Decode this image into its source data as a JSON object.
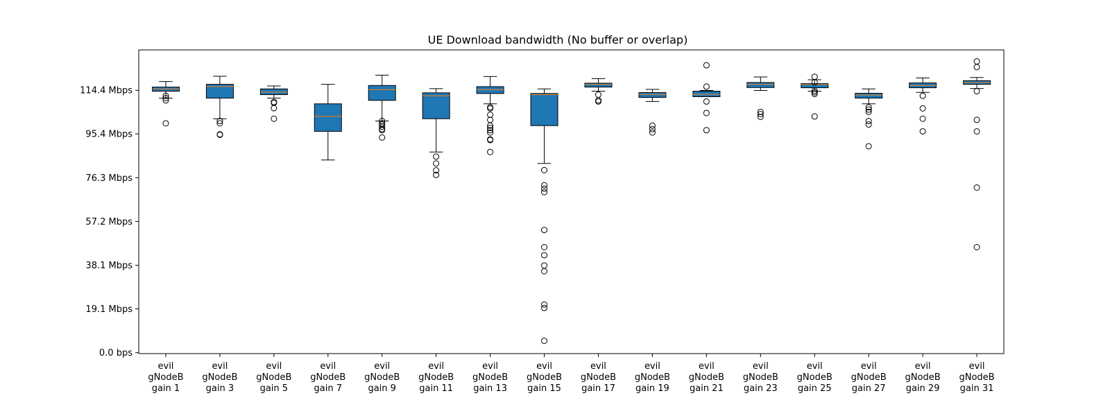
{
  "chart_data": {
    "type": "box",
    "title": "UE Download bandwidth (No buffer or overlap)",
    "xlabel": "",
    "ylabel": "",
    "ylim": [
      -0.4,
      132
    ],
    "yticks": [
      {
        "value": 0.0,
        "label": "0.0 bps"
      },
      {
        "value": 19.1,
        "label": "19.1 Mbps"
      },
      {
        "value": 38.1,
        "label": "38.1 Mbps"
      },
      {
        "value": 57.2,
        "label": "57.2 Mbps"
      },
      {
        "value": 76.3,
        "label": "76.3 Mbps"
      },
      {
        "value": 95.4,
        "label": "95.4 Mbps"
      },
      {
        "value": 114.4,
        "label": "114.4 Mbps"
      }
    ],
    "unit": "Mbps",
    "grid": false,
    "colors": {
      "box_fill": "#1f77b4",
      "median": "#ff7f0e",
      "line": "#000000",
      "flier": "#000000"
    },
    "boxes": [
      {
        "label": [
          "evil",
          "gNodeB",
          "gain 1"
        ],
        "whislo": 111.0,
        "q1": 114.0,
        "med": 115.0,
        "q3": 115.8,
        "whishi": 118.2,
        "fliers": [
          110.0,
          111.0,
          112.0,
          100.0
        ]
      },
      {
        "label": [
          "evil",
          "gNodeB",
          "gain 3"
        ],
        "whislo": 102.0,
        "q1": 111.0,
        "med": 116.0,
        "q3": 117.0,
        "whishi": 120.5,
        "fliers": [
          101.0,
          100.0,
          95.2,
          95.0
        ]
      },
      {
        "label": [
          "evil",
          "gNodeB",
          "gain 5"
        ],
        "whislo": 111.0,
        "q1": 112.5,
        "med": 113.6,
        "q3": 115.0,
        "whishi": 116.3,
        "fliers": [
          109.3,
          108.9,
          106.6,
          102.0
        ]
      },
      {
        "label": [
          "evil",
          "gNodeB",
          "gain 7"
        ],
        "whislo": 84.0,
        "q1": 96.5,
        "med": 103.0,
        "q3": 108.5,
        "whishi": 117.0,
        "fliers": []
      },
      {
        "label": [
          "evil",
          "gNodeB",
          "gain 9"
        ],
        "whislo": 101.0,
        "q1": 110.0,
        "med": 114.7,
        "q3": 116.5,
        "whishi": 121.0,
        "fliers": [
          101.0,
          100.0,
          99.5,
          98.5,
          97.5,
          97.0,
          93.8
        ]
      },
      {
        "label": [
          "evil",
          "gNodeB",
          "gain 11"
        ],
        "whislo": 87.5,
        "q1": 102.0,
        "med": 112.0,
        "q3": 113.3,
        "whishi": 115.1,
        "fliers": [
          85.5,
          82.5,
          79.5,
          77.5
        ]
      },
      {
        "label": [
          "evil",
          "gNodeB",
          "gain 13"
        ],
        "whislo": 108.5,
        "q1": 113.0,
        "med": 114.7,
        "q3": 116.0,
        "whishi": 120.4,
        "fliers": [
          107.0,
          106.5,
          103.7,
          101.5,
          99.0,
          98.0,
          97.0,
          96.0,
          93.0,
          92.7,
          87.5
        ]
      },
      {
        "label": [
          "evil",
          "gNodeB",
          "gain 15"
        ],
        "whislo": 82.5,
        "q1": 99.0,
        "med": 112.5,
        "q3": 113.0,
        "whishi": 115.0,
        "fliers": [
          79.6,
          73.0,
          71.5,
          70.0,
          53.5,
          46.0,
          42.5,
          38.0,
          35.5,
          21.0,
          19.5,
          5.2
        ]
      },
      {
        "label": [
          "evil",
          "gNodeB",
          "gain 17"
        ],
        "whislo": 114.0,
        "q1": 115.8,
        "med": 117.0,
        "q3": 117.5,
        "whishi": 119.5,
        "fliers": [
          112.5,
          110.0,
          109.5
        ]
      },
      {
        "label": [
          "evil",
          "gNodeB",
          "gain 19"
        ],
        "whislo": 109.5,
        "q1": 111.3,
        "med": 112.6,
        "q3": 113.4,
        "whishi": 114.8,
        "fliers": [
          99.0,
          97.5,
          96.0
        ]
      },
      {
        "label": [
          "evil",
          "gNodeB",
          "gain 21"
        ],
        "whislo": 111.6,
        "q1": 111.6,
        "med": 112.6,
        "q3": 114.0,
        "whishi": 114.3,
        "fliers": [
          125.3,
          116.0,
          109.5,
          104.5,
          97.0
        ]
      },
      {
        "label": [
          "evil",
          "gNodeB",
          "gain 23"
        ],
        "whislo": 114.3,
        "q1": 115.6,
        "med": 117.0,
        "q3": 117.8,
        "whishi": 120.2,
        "fliers": [
          105.0,
          104.0,
          102.8
        ]
      },
      {
        "label": [
          "evil",
          "gNodeB",
          "gain 25"
        ],
        "whislo": 114.0,
        "q1": 115.5,
        "med": 116.9,
        "q3": 117.3,
        "whishi": 119.0,
        "fliers": [
          120.3,
          117.9,
          114.2,
          113.5,
          112.8,
          103.0
        ]
      },
      {
        "label": [
          "evil",
          "gNodeB",
          "gain 27"
        ],
        "whislo": 108.5,
        "q1": 111.0,
        "med": 112.3,
        "q3": 113.1,
        "whishi": 115.0,
        "fliers": [
          107.0,
          106.0,
          105.0,
          101.0,
          99.5,
          90.0
        ]
      },
      {
        "label": [
          "evil",
          "gNodeB",
          "gain 29"
        ],
        "whislo": 113.5,
        "q1": 115.5,
        "med": 116.5,
        "q3": 117.6,
        "whishi": 119.8,
        "fliers": [
          112.0,
          106.5,
          102.0,
          96.5
        ]
      },
      {
        "label": [
          "evil",
          "gNodeB",
          "gain 31"
        ],
        "whislo": 115.2,
        "q1": 117.0,
        "med": 117.8,
        "q3": 118.6,
        "whishi": 120.0,
        "fliers": [
          127.0,
          124.5,
          114.0,
          101.5,
          96.5,
          72.0,
          46.0
        ]
      }
    ]
  }
}
